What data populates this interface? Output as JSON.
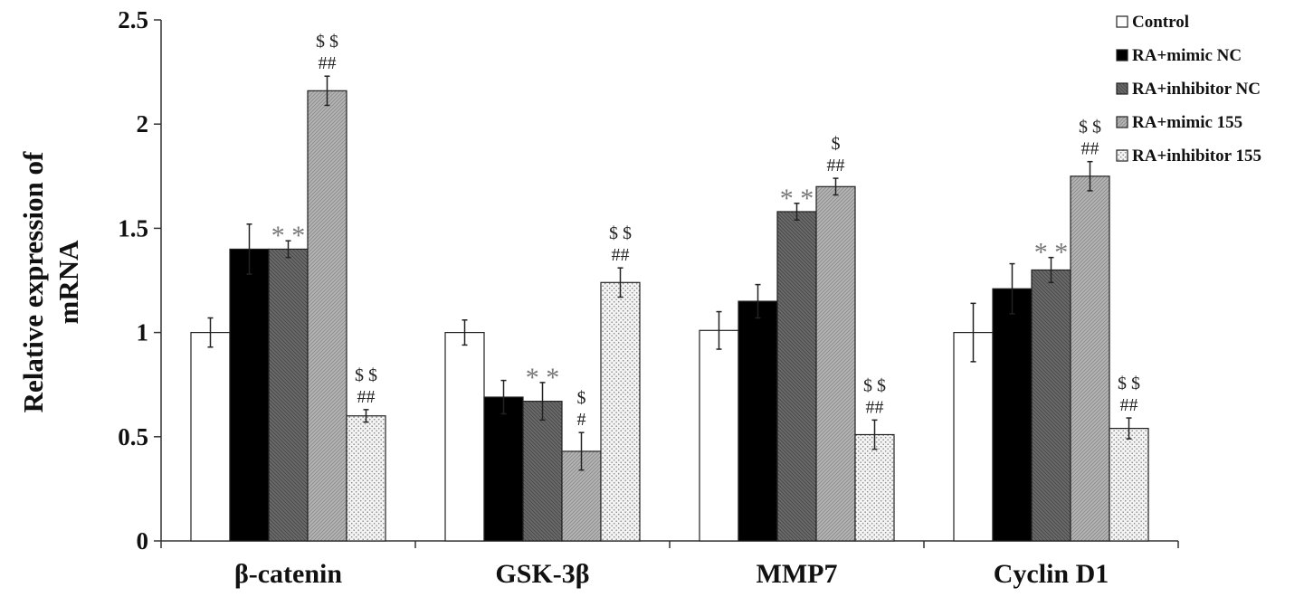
{
  "chart_data": {
    "type": "bar",
    "ylabel_line1": "Relative expression of",
    "ylabel_line2": "mRNA",
    "ylim": [
      0,
      2.5
    ],
    "yticks": [
      "0",
      "0.5",
      "1",
      "1.5",
      "2",
      "2.5"
    ],
    "ytick_values": [
      0,
      0.5,
      1,
      1.5,
      2,
      2.5
    ],
    "categories": [
      "β-catenin",
      "GSK-3β",
      "MMP7",
      "Cyclin D1"
    ],
    "legend_position": "top-right",
    "series": [
      {
        "name": "Control",
        "values": [
          1.0,
          1.0,
          1.01,
          1.0
        ],
        "errors": [
          0.07,
          0.06,
          0.09,
          0.14
        ],
        "pattern": "white",
        "annotations": [
          [],
          [],
          [],
          []
        ]
      },
      {
        "name": "RA+mimic NC",
        "values": [
          1.4,
          0.69,
          1.15,
          1.21
        ],
        "errors": [
          0.12,
          0.08,
          0.08,
          0.12
        ],
        "pattern": "black",
        "annotations": [
          [],
          [],
          [],
          []
        ]
      },
      {
        "name": "RA+inhibitor NC",
        "values": [
          1.4,
          0.67,
          1.58,
          1.3
        ],
        "errors": [
          0.04,
          0.09,
          0.04,
          0.06
        ],
        "pattern": "dark-gray",
        "annotations": [
          [
            "**"
          ],
          [
            "**"
          ],
          [
            "**"
          ],
          [
            "**"
          ]
        ]
      },
      {
        "name": "RA+mimic 155",
        "values": [
          2.16,
          0.43,
          1.7,
          1.75
        ],
        "errors": [
          0.07,
          0.09,
          0.04,
          0.07
        ],
        "pattern": "light-gray",
        "annotations": [
          [
            "##",
            "$ $"
          ],
          [
            "#",
            "$"
          ],
          [
            "##",
            "$"
          ],
          [
            "##",
            "$ $"
          ]
        ]
      },
      {
        "name": "RA+inhibitor 155",
        "values": [
          0.6,
          1.24,
          0.51,
          0.54
        ],
        "errors": [
          0.03,
          0.07,
          0.07,
          0.05
        ],
        "pattern": "dotted",
        "annotations": [
          [
            "##",
            "$ $"
          ],
          [
            "##",
            "$ $"
          ],
          [
            "##",
            "$ $"
          ],
          [
            "##",
            "$ $"
          ]
        ]
      }
    ]
  }
}
